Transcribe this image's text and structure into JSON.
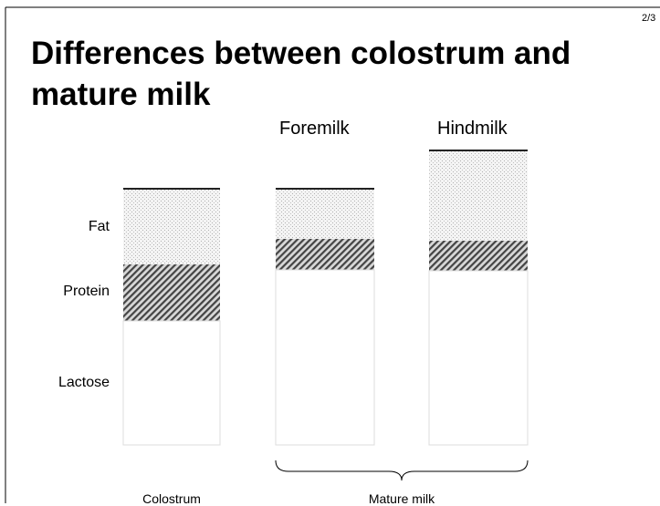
{
  "page_number": "2/3",
  "title": "Differences between colostrum and mature milk",
  "column_labels": [
    "Foremilk",
    "Hindmilk"
  ],
  "segment_labels": [
    "Fat",
    "Protein",
    "Lactose"
  ],
  "group_labels": [
    "Colostrum",
    "Mature milk"
  ]
}
